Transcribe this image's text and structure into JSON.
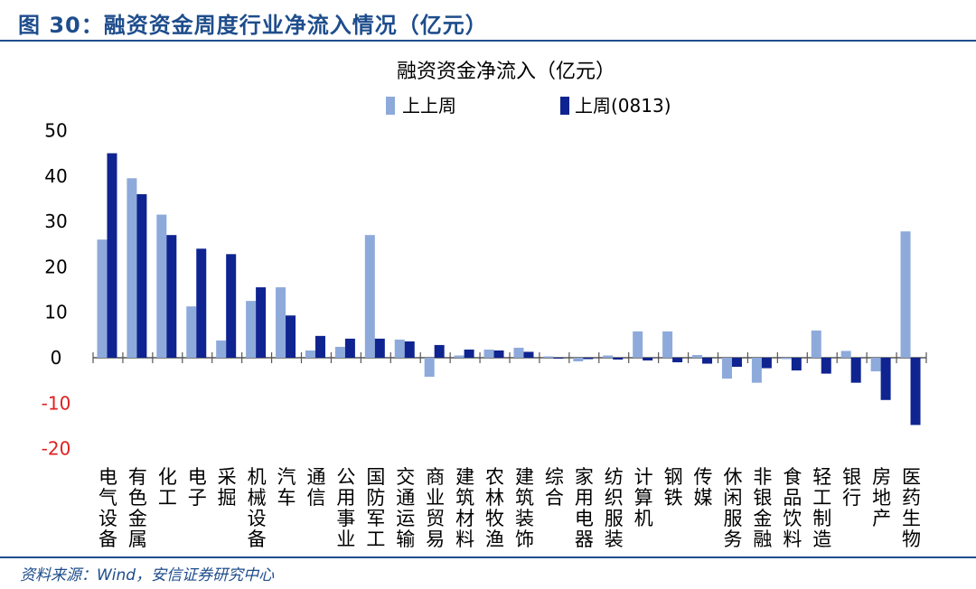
{
  "figure_title": "图 30：融资资金周度行业净流入情况（亿元）",
  "source": "资料来源：Wind，安信证券研究中心",
  "chart_data": {
    "type": "bar",
    "title": "融资资金净流入（亿元）",
    "ylim": [
      -20,
      50
    ],
    "yticks": [
      50,
      40,
      30,
      20,
      10,
      0,
      -10,
      -20
    ],
    "legend": "top",
    "categories": [
      "电气设备",
      "有色金属",
      "化工",
      "电子",
      "采掘",
      "机械设备",
      "汽车",
      "通信",
      "公用事业",
      "国防军工",
      "交通运输",
      "商业贸易",
      "建筑材料",
      "农林牧渔",
      "建筑装饰",
      "综合",
      "家用电器",
      "纺织服装",
      "计算机",
      "钢铁",
      "传媒",
      "休闲服务",
      "非银金融",
      "食品饮料",
      "轻工制造",
      "银行",
      "房地产",
      "医药生物"
    ],
    "series": [
      {
        "name": "上上周",
        "color": "#8eaadb",
        "values": [
          26,
          39.5,
          31.5,
          11.3,
          3.8,
          12.5,
          15.5,
          1.6,
          2.4,
          27,
          4,
          -4.2,
          0.5,
          1.8,
          2.2,
          0.3,
          -0.8,
          0.5,
          5.8,
          5.8,
          0.6,
          -4.6,
          -5.5,
          -0.3,
          6,
          1.5,
          -3,
          27.8
        ]
      },
      {
        "name": "上周(0813)",
        "color": "#0f2490",
        "values": [
          45,
          36,
          27,
          24,
          22.8,
          15.5,
          9.3,
          4.8,
          4.2,
          4.2,
          3.6,
          2.8,
          1.8,
          1.6,
          1.3,
          -0.2,
          -0.3,
          -0.4,
          -0.6,
          -1,
          -1.3,
          -2,
          -2.3,
          -2.8,
          -3.5,
          -5.5,
          -9.3,
          -14.8
        ]
      }
    ],
    "negative_tick_color": "#e02020"
  }
}
